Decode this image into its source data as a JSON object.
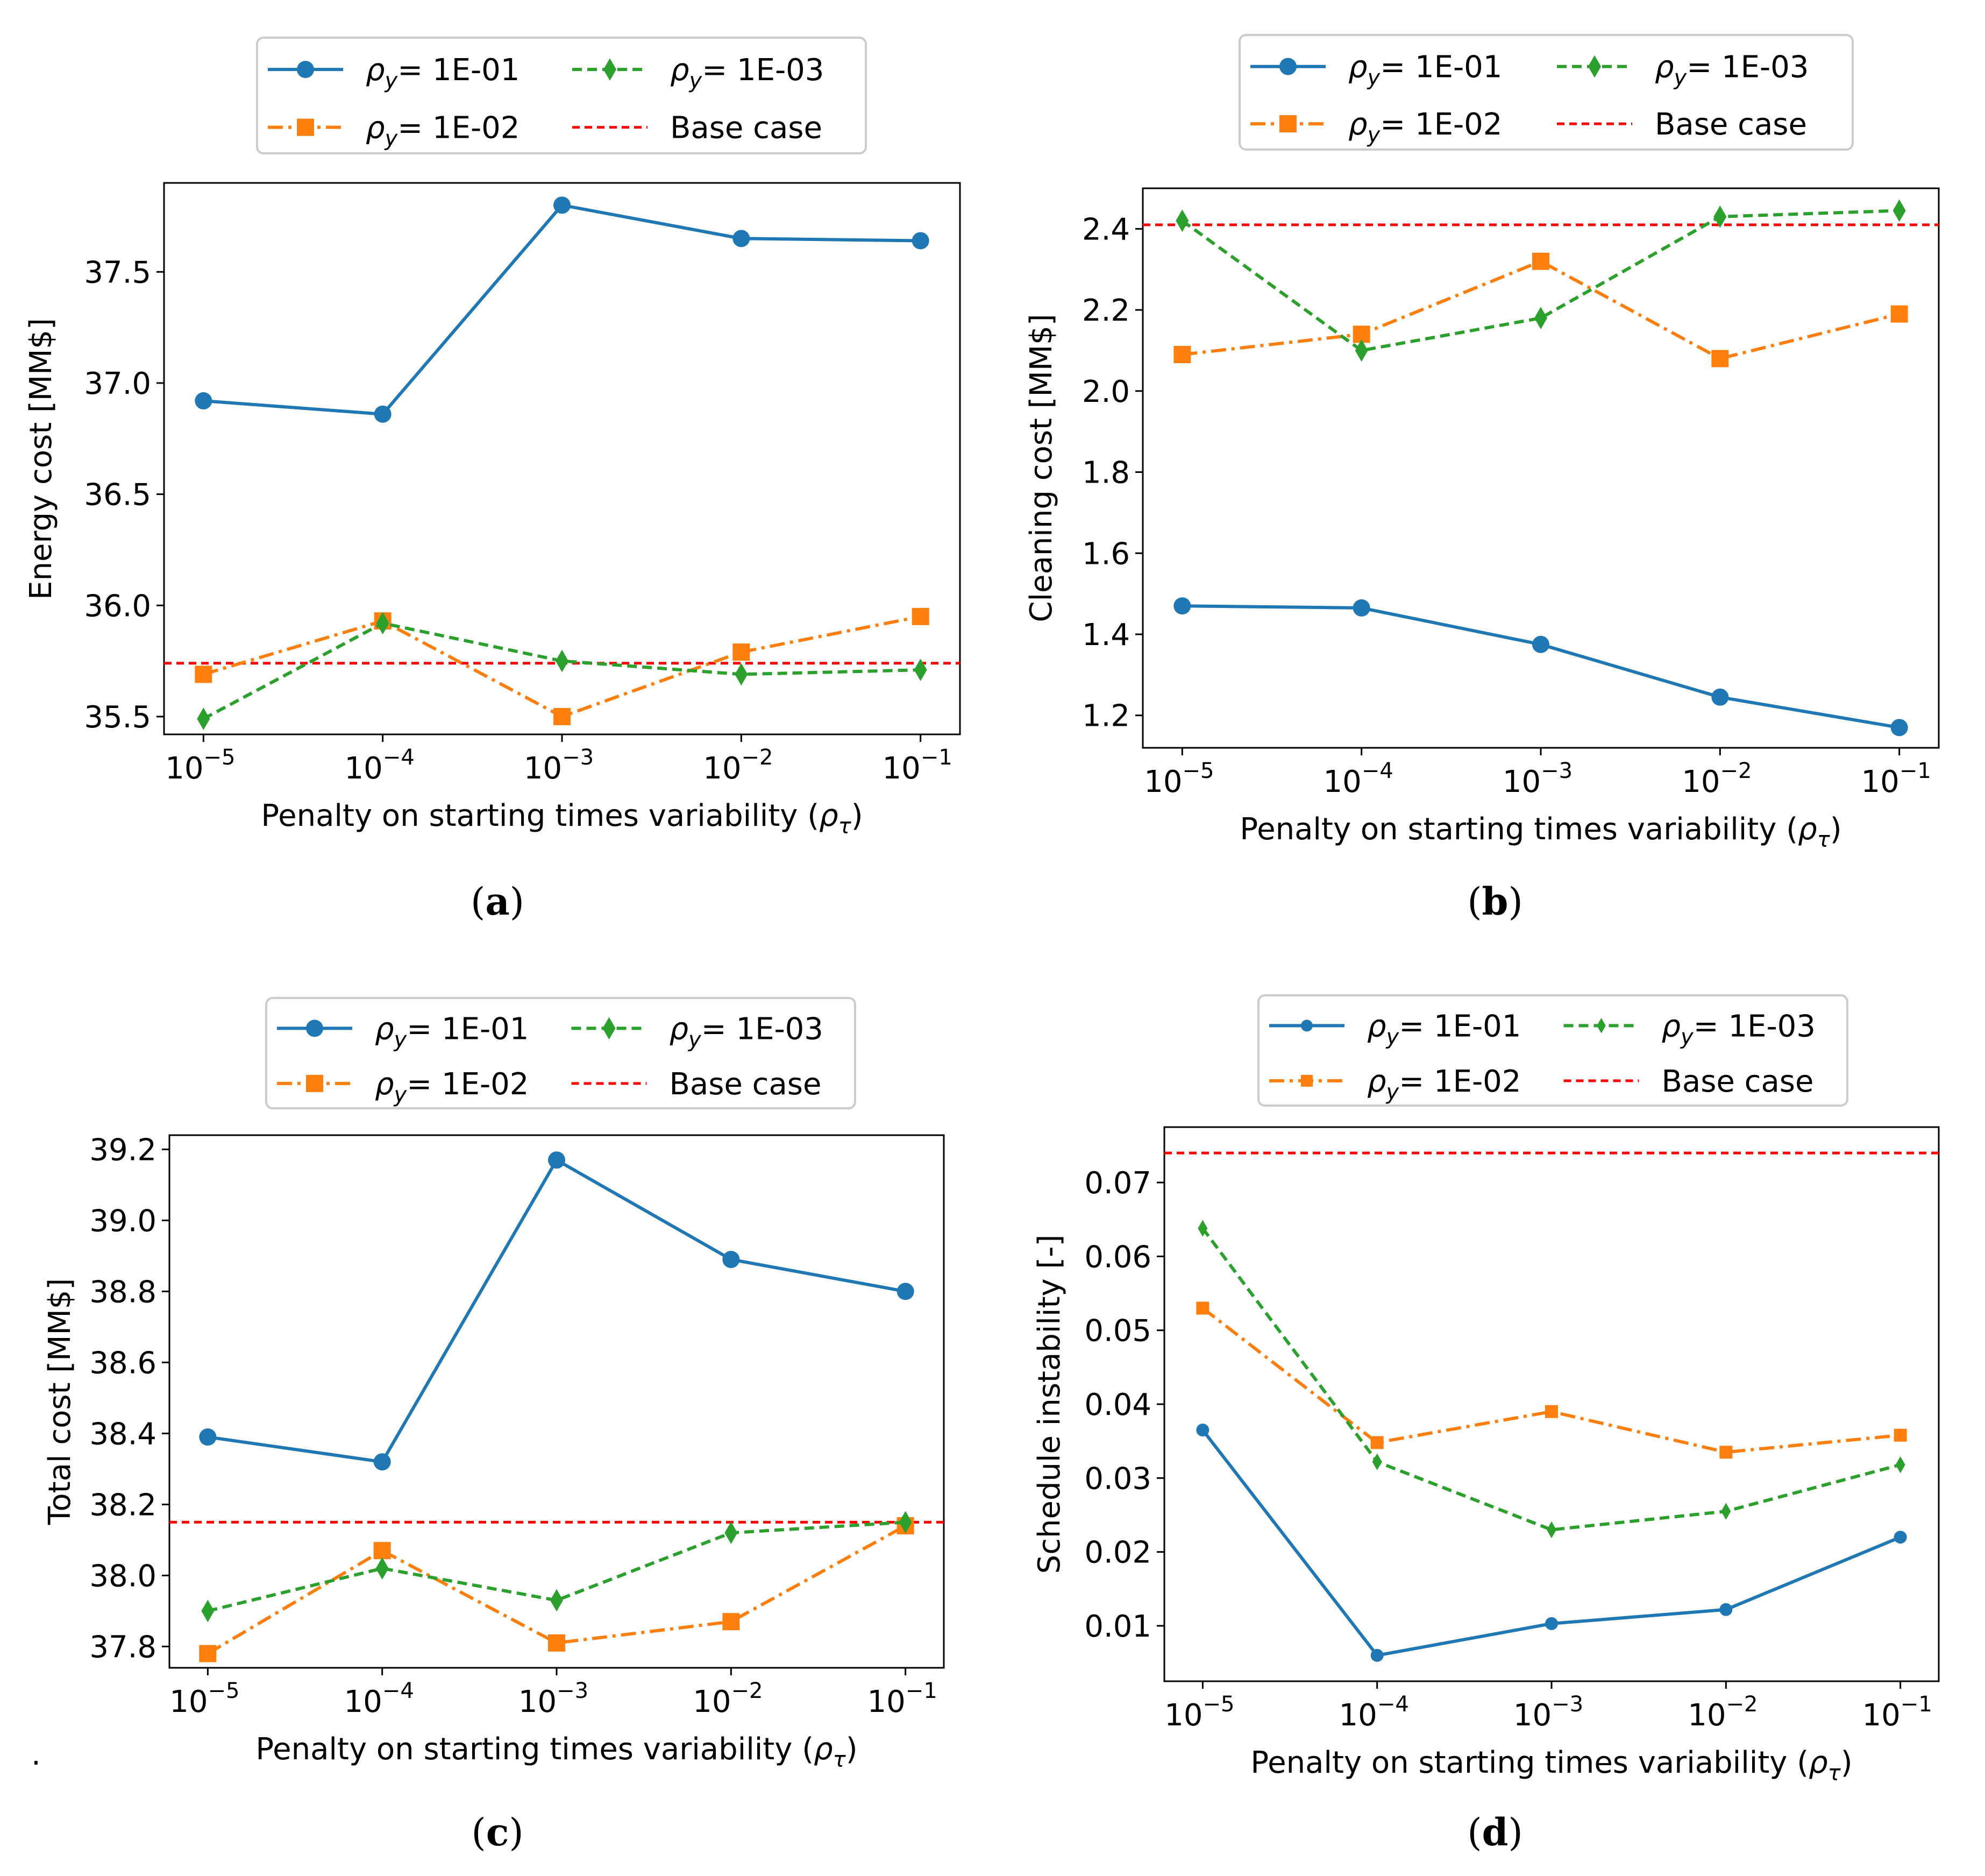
{
  "figure": {
    "stray_mark": "."
  },
  "legend_labels": {
    "rho_symbol": "ρ",
    "rho_sub": "y",
    "series": [
      "= 1E-01",
      "= 1E-02",
      "= 1E-03"
    ],
    "base": "Base case"
  },
  "colors": {
    "blue": "#1f77b4",
    "orange": "#ff7f0e",
    "green": "#2ca02c",
    "red": "#ff0000"
  },
  "chart_data": [
    {
      "id": "a",
      "type": "line",
      "caption": "a",
      "xlabel": "Penalty on starting times variability (",
      "xlabel_symbol": "ρ",
      "xlabel_sub": "τ",
      "xlabel_end": ")",
      "ylabel": "Energy cost [MM$]",
      "x_exponents": [
        -5,
        -4,
        -3,
        -2,
        -1
      ],
      "x_tick_labels": [
        "10",
        "10",
        "10",
        "10",
        "10"
      ],
      "x_tick_exps": [
        "−5",
        "−4",
        "−3",
        "−2",
        "−1"
      ],
      "ylim": [
        35.42,
        37.9
      ],
      "yticks": [
        35.5,
        36.0,
        36.5,
        37.0,
        37.5
      ],
      "ytick_labels": [
        "35.5",
        "36.0",
        "36.5",
        "37.0",
        "37.5"
      ],
      "base_case": 35.74,
      "series": [
        {
          "name": "ρy= 1E-01",
          "values": [
            36.92,
            36.86,
            37.8,
            37.65,
            37.64
          ]
        },
        {
          "name": "ρy= 1E-02",
          "values": [
            35.69,
            35.93,
            35.5,
            35.79,
            35.95
          ]
        },
        {
          "name": "ρy= 1E-03",
          "values": [
            35.49,
            35.92,
            35.75,
            35.69,
            35.71
          ]
        }
      ]
    },
    {
      "id": "b",
      "type": "line",
      "caption": "b",
      "xlabel": "Penalty on starting times variability (",
      "xlabel_symbol": "ρ",
      "xlabel_sub": "τ",
      "xlabel_end": ")",
      "ylabel": "Cleaning cost [MM$]",
      "x_exponents": [
        -5,
        -4,
        -3,
        -2,
        -1
      ],
      "x_tick_labels": [
        "10",
        "10",
        "10",
        "10",
        "10"
      ],
      "x_tick_exps": [
        "−5",
        "−4",
        "−3",
        "−2",
        "−1"
      ],
      "ylim": [
        1.12,
        2.5
      ],
      "yticks": [
        1.2,
        1.4,
        1.6,
        1.8,
        2.0,
        2.2,
        2.4
      ],
      "ytick_labels": [
        "1.2",
        "1.4",
        "1.6",
        "1.8",
        "2.0",
        "2.2",
        "2.4"
      ],
      "base_case": 2.41,
      "series": [
        {
          "name": "ρy= 1E-01",
          "values": [
            1.47,
            1.465,
            1.375,
            1.245,
            1.17
          ]
        },
        {
          "name": "ρy= 1E-02",
          "values": [
            2.09,
            2.14,
            2.32,
            2.08,
            2.19
          ]
        },
        {
          "name": "ρy= 1E-03",
          "values": [
            2.42,
            2.1,
            2.18,
            2.43,
            2.445
          ]
        }
      ]
    },
    {
      "id": "c",
      "type": "line",
      "caption": "c",
      "xlabel": "Penalty on starting times variability (",
      "xlabel_symbol": "ρ",
      "xlabel_sub": "τ",
      "xlabel_end": ")",
      "ylabel": "Total cost [MM$]",
      "x_exponents": [
        -5,
        -4,
        -3,
        -2,
        -1
      ],
      "x_tick_labels": [
        "10",
        "10",
        "10",
        "10",
        "10"
      ],
      "x_tick_exps": [
        "−5",
        "−4",
        "−3",
        "−2",
        "−1"
      ],
      "ylim": [
        37.74,
        39.24
      ],
      "yticks": [
        37.8,
        38.0,
        38.2,
        38.4,
        38.6,
        38.8,
        39.0,
        39.2
      ],
      "ytick_labels": [
        "37.8",
        "38.0",
        "38.2",
        "38.4",
        "38.6",
        "38.8",
        "39.0",
        "39.2"
      ],
      "base_case": 38.15,
      "series": [
        {
          "name": "ρy= 1E-01",
          "values": [
            38.39,
            38.32,
            39.17,
            38.89,
            38.8
          ]
        },
        {
          "name": "ρy= 1E-02",
          "values": [
            37.78,
            38.07,
            37.81,
            37.87,
            38.14
          ]
        },
        {
          "name": "ρy= 1E-03",
          "values": [
            37.9,
            38.02,
            37.93,
            38.12,
            38.15
          ]
        }
      ]
    },
    {
      "id": "d",
      "type": "line",
      "caption": "d",
      "xlabel": "Penalty on starting times variability (",
      "xlabel_symbol": "ρ",
      "xlabel_sub": "τ",
      "xlabel_end": ")",
      "ylabel": "Schedule instability [-]",
      "x_exponents": [
        -5,
        -4,
        -3,
        -2,
        -1
      ],
      "x_tick_labels": [
        "10",
        "10",
        "10",
        "10",
        "10"
      ],
      "x_tick_exps": [
        "−5",
        "−4",
        "−3",
        "−2",
        "−1"
      ],
      "ylim": [
        0.0025,
        0.0775
      ],
      "yticks": [
        0.01,
        0.02,
        0.03,
        0.04,
        0.05,
        0.06,
        0.07
      ],
      "ytick_labels": [
        "0.01",
        "0.02",
        "0.03",
        "0.04",
        "0.05",
        "0.06",
        "0.07"
      ],
      "base_case": 0.074,
      "series": [
        {
          "name": "ρy= 1E-01",
          "values": [
            0.0365,
            0.006,
            0.0103,
            0.0122,
            0.022
          ]
        },
        {
          "name": "ρy= 1E-02",
          "values": [
            0.053,
            0.0348,
            0.039,
            0.0335,
            0.0358
          ]
        },
        {
          "name": "ρy= 1E-03",
          "values": [
            0.0638,
            0.0322,
            0.023,
            0.0255,
            0.0318
          ]
        }
      ]
    }
  ]
}
